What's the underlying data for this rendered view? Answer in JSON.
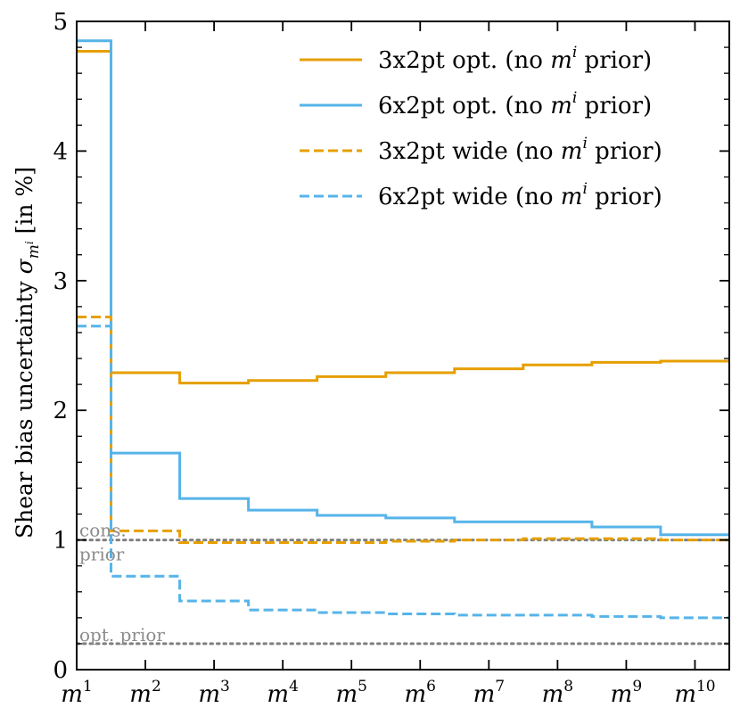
{
  "chart_data": {
    "type": "line",
    "drawstyle": "steps-mid",
    "title": "",
    "xlabel": "",
    "ylabel": "Shear bias uncertainty σ_{m^i} [in %]",
    "ylabel_parts": {
      "main": "Shear bias uncertainty ",
      "sigma": "σ",
      "m": "m",
      "i": "i",
      "unit": " [in %]"
    },
    "ylim": [
      0,
      5
    ],
    "yticks": [
      0,
      1,
      2,
      3,
      4,
      5
    ],
    "ytick_labels": [
      "0",
      "1",
      "2",
      "3",
      "4",
      "5"
    ],
    "categories": [
      "m1",
      "m2",
      "m3",
      "m4",
      "m5",
      "m6",
      "m7",
      "m8",
      "m9",
      "m10"
    ],
    "category_labels": [
      {
        "base": "m",
        "sup": "1"
      },
      {
        "base": "m",
        "sup": "2"
      },
      {
        "base": "m",
        "sup": "3"
      },
      {
        "base": "m",
        "sup": "4"
      },
      {
        "base": "m",
        "sup": "5"
      },
      {
        "base": "m",
        "sup": "6"
      },
      {
        "base": "m",
        "sup": "7"
      },
      {
        "base": "m",
        "sup": "8"
      },
      {
        "base": "m",
        "sup": "9"
      },
      {
        "base": "m",
        "sup": "10"
      }
    ],
    "series": [
      {
        "name": "3x2pt opt. (no m^i prior)",
        "label_prefix": "3x2pt opt. (no ",
        "label_suffix": " prior)",
        "color": "#E69F00",
        "linestyle": "solid",
        "values": [
          4.77,
          2.29,
          2.21,
          2.23,
          2.26,
          2.29,
          2.32,
          2.35,
          2.37,
          2.38
        ]
      },
      {
        "name": "6x2pt opt. (no m^i prior)",
        "label_prefix": "6x2pt opt. (no ",
        "label_suffix": " prior)",
        "color": "#56B4E9",
        "linestyle": "solid",
        "values": [
          4.85,
          1.67,
          1.32,
          1.23,
          1.19,
          1.17,
          1.14,
          1.14,
          1.1,
          1.04
        ]
      },
      {
        "name": "3x2pt wide (no m^i prior)",
        "label_prefix": "3x2pt wide (no ",
        "label_suffix": " prior)",
        "color": "#E69F00",
        "linestyle": "dashed",
        "values": [
          2.72,
          1.07,
          0.98,
          0.98,
          0.98,
          0.99,
          1.0,
          1.01,
          1.01,
          1.0
        ]
      },
      {
        "name": "6x2pt wide (no m^i prior)",
        "label_prefix": "6x2pt wide (no ",
        "label_suffix": " prior)",
        "color": "#56B4E9",
        "linestyle": "dashed",
        "values": [
          2.65,
          0.72,
          0.53,
          0.46,
          0.44,
          0.43,
          0.42,
          0.42,
          0.41,
          0.4
        ]
      }
    ],
    "reference_lines": [
      {
        "value": 1.0,
        "labels": [
          "cons.",
          "prior"
        ],
        "color": "#808080",
        "linestyle": "dotted"
      },
      {
        "value": 0.2,
        "labels": [
          "opt. prior"
        ],
        "color": "#808080",
        "linestyle": "dotted"
      }
    ],
    "legend": {
      "location": "upper-right",
      "math_m": "m",
      "math_i": "i"
    },
    "grid": false
  }
}
